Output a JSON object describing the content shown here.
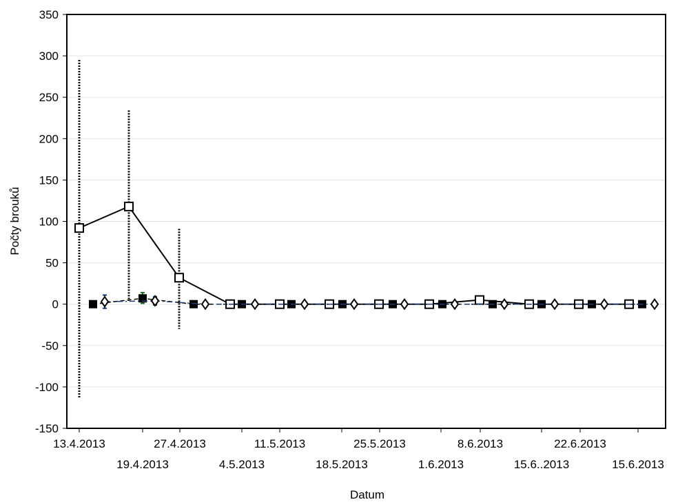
{
  "chart_data": {
    "type": "line",
    "xlabel": "Datum",
    "ylabel": "Počty brouků",
    "ylim": [
      -150,
      350
    ],
    "yticks": [
      -150,
      -100,
      -50,
      0,
      50,
      100,
      150,
      200,
      250,
      300,
      350
    ],
    "grid": true,
    "x_tick_labels_row1": [
      "13.4.2013",
      "27.4.2013",
      "11.5.2013",
      "25.5.2013",
      "8.6.2013",
      "22.6.2013"
    ],
    "x_tick_labels_row2": [
      "19.4.2013",
      "4.5.2013",
      "18.5.2013",
      "1.6.2013",
      "15.6..2013",
      "15.6.2013"
    ],
    "series": [
      {
        "marker": "open-square",
        "line": "solid",
        "color": "#000000",
        "values": [
          92,
          118,
          32,
          0,
          0,
          0,
          0,
          0,
          5,
          0,
          0,
          0
        ],
        "error_low": [
          -113,
          4,
          -30,
          null,
          null,
          null,
          null,
          null,
          null,
          null,
          null,
          null
        ],
        "error_high": [
          295,
          234,
          91,
          null,
          null,
          null,
          null,
          null,
          null,
          null,
          null,
          null
        ]
      },
      {
        "marker": "filled-square",
        "line": "dashed",
        "color": "#000000",
        "values": [
          0,
          7,
          0,
          0,
          0,
          0,
          0,
          0,
          0,
          0,
          0,
          0
        ],
        "error_low": [
          null,
          1,
          null,
          null,
          null,
          null,
          null,
          null,
          null,
          null,
          null,
          null
        ],
        "error_high": [
          null,
          14,
          null,
          null,
          null,
          null,
          null,
          null,
          null,
          null,
          null,
          null
        ]
      },
      {
        "marker": "open-diamond",
        "line": "dash-dot",
        "color": "#1f3a7a",
        "values": [
          3,
          4,
          0,
          0,
          0,
          0,
          0,
          0,
          0,
          0,
          0,
          0
        ],
        "error_low": [
          -5,
          -1,
          null,
          null,
          null,
          null,
          null,
          null,
          null,
          null,
          null,
          null
        ],
        "error_high": [
          11,
          9,
          null,
          null,
          null,
          null,
          null,
          null,
          null,
          null,
          null,
          null
        ]
      }
    ]
  }
}
